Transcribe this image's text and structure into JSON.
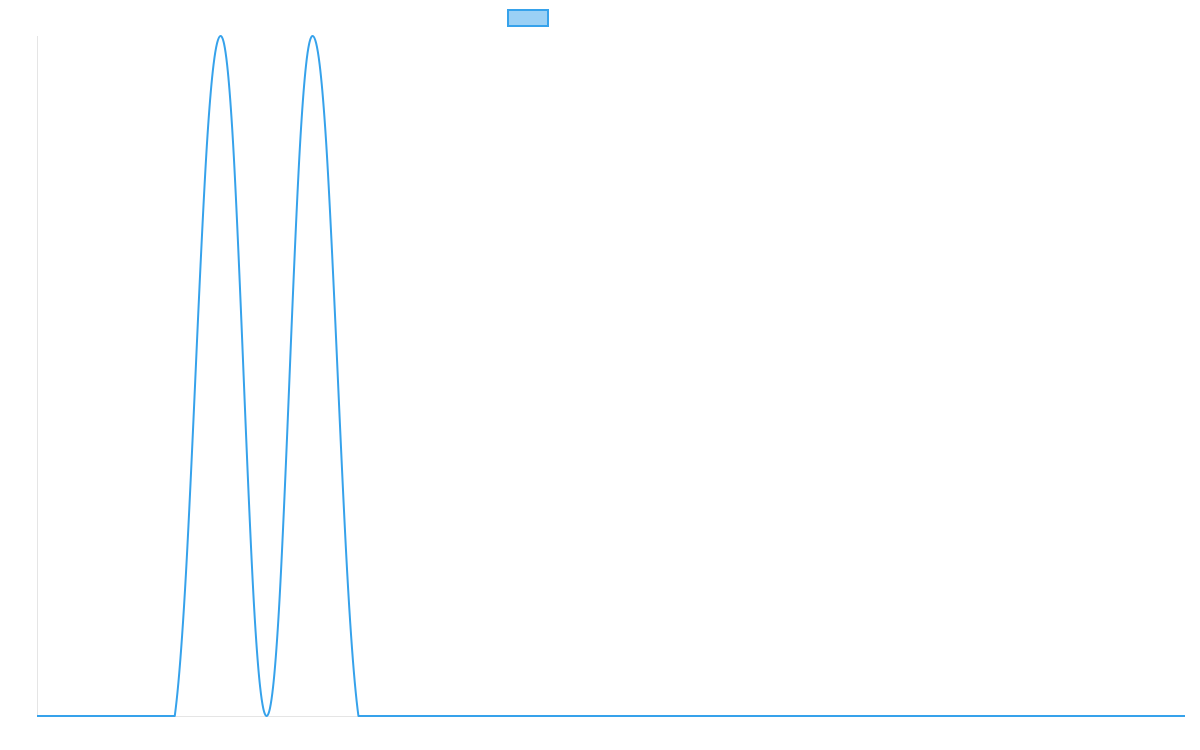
{
  "chart_data": {
    "type": "line",
    "title": "",
    "xlabel": "",
    "ylabel": "",
    "grid": false,
    "legend_position": "top-center",
    "x_count": 26,
    "ylim": [
      0,
      1
    ],
    "series": [
      {
        "name": "",
        "color": "#36a2eb",
        "fill": "#9ad0f5",
        "values": [
          0,
          0,
          0,
          0,
          1,
          0,
          1,
          0,
          0,
          0,
          0,
          0,
          0,
          0,
          0,
          0,
          0,
          0,
          0,
          0,
          0,
          0,
          0,
          0,
          0,
          0
        ]
      }
    ]
  }
}
